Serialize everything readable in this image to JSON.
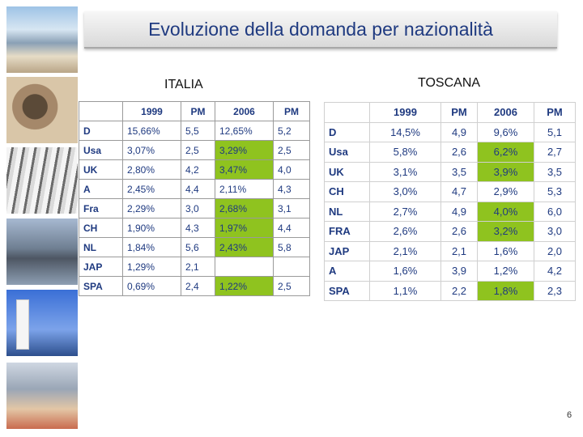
{
  "title": "Evoluzione della domanda per nazionalità",
  "italia": {
    "label": "ITALIA",
    "headers": [
      "",
      "1999",
      "PM",
      "2006",
      "PM"
    ],
    "rows": [
      {
        "c": [
          "D",
          "15,66%",
          "5,5",
          "12,65%",
          "5,2"
        ],
        "hl": false
      },
      {
        "c": [
          "Usa",
          "3,07%",
          "2,5",
          "3,29%",
          "2,5"
        ],
        "hl": true
      },
      {
        "c": [
          "UK",
          "2,80%",
          "4,2",
          "3,47%",
          "4,0"
        ],
        "hl": true
      },
      {
        "c": [
          "A",
          "2,45%",
          "4,4",
          "2,11%",
          "4,3"
        ],
        "hl": false
      },
      {
        "c": [
          "Fra",
          "2,29%",
          "3,0",
          "2,68%",
          "3,1"
        ],
        "hl": true
      },
      {
        "c": [
          "CH",
          "1,90%",
          "4,3",
          "1,97%",
          "4,4"
        ],
        "hl": true
      },
      {
        "c": [
          "NL",
          "1,84%",
          "5,6",
          "2,43%",
          "5,8"
        ],
        "hl": true
      },
      {
        "c": [
          "JAP",
          "1,29%",
          "2,1",
          "",
          ""
        ],
        "hl": false
      },
      {
        "c": [
          "SPA",
          "0,69%",
          "2,4",
          "1,22%",
          "2,5"
        ],
        "hl": true
      }
    ]
  },
  "toscana": {
    "label": "TOSCANA",
    "headers": [
      "",
      "1999",
      "PM",
      "2006",
      "PM"
    ],
    "rows": [
      {
        "c": [
          "D",
          "14,5%",
          "4,9",
          "9,6%",
          "5,1"
        ],
        "hl": false
      },
      {
        "c": [
          "Usa",
          "5,8%",
          "2,6",
          "6,2%",
          "2,7"
        ],
        "hl": true
      },
      {
        "c": [
          "UK",
          "3,1%",
          "3,5",
          "3,9%",
          "3,5"
        ],
        "hl": true
      },
      {
        "c": [
          "CH",
          "3,0%",
          "4,7",
          "2,9%",
          "5,3"
        ],
        "hl": false
      },
      {
        "c": [
          "NL",
          "2,7%",
          "4,9",
          "4,0%",
          "6,0"
        ],
        "hl": true
      },
      {
        "c": [
          "FRA",
          "2,6%",
          "2,6",
          "3,2%",
          "3,0"
        ],
        "hl": true
      },
      {
        "c": [
          "JAP",
          "2,1%",
          "2,1",
          "1,6%",
          "2,0"
        ],
        "hl": false
      },
      {
        "c": [
          "A",
          "1,6%",
          "3,9",
          "1,2%",
          "4,2"
        ],
        "hl": false
      },
      {
        "c": [
          "SPA",
          "1,1%",
          "2,2",
          "1,8%",
          "2,3"
        ],
        "hl": true
      }
    ]
  },
  "highlight_color": "#8fc31f",
  "page_number": "6"
}
